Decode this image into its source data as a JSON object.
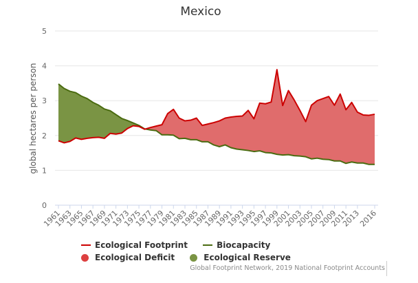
{
  "chart_data": {
    "type": "area",
    "title": "Mexico",
    "ylabel": "global hectares per person",
    "xlabel": "",
    "ylim": [
      0,
      5
    ],
    "yticks": [
      0,
      1,
      2,
      3,
      4,
      5
    ],
    "grid": true,
    "legend_placement": "bottom",
    "x": [
      1961,
      1962,
      1963,
      1964,
      1965,
      1966,
      1967,
      1968,
      1969,
      1970,
      1971,
      1972,
      1973,
      1974,
      1975,
      1976,
      1977,
      1978,
      1979,
      1980,
      1981,
      1982,
      1983,
      1984,
      1985,
      1986,
      1987,
      1988,
      1989,
      1990,
      1991,
      1992,
      1993,
      1994,
      1995,
      1996,
      1997,
      1998,
      1999,
      2000,
      2001,
      2002,
      2003,
      2004,
      2005,
      2006,
      2007,
      2008,
      2009,
      2010,
      2011,
      2012,
      2013,
      2014,
      2015,
      2016
    ],
    "xtick_labels": [
      "1961",
      "1963",
      "1965",
      "1967",
      "1969",
      "1971",
      "1973",
      "1975",
      "1977",
      "1979",
      "1981",
      "1983",
      "1985",
      "1987",
      "1989",
      "1991",
      "1993",
      "1995",
      "1997",
      "1999",
      "2001",
      "2003",
      "2005",
      "2007",
      "2009",
      "2011",
      "2013",
      "2016"
    ],
    "series": [
      {
        "name": "Ecological Footprint",
        "color": "#cc0000",
        "values": [
          1.85,
          1.79,
          1.83,
          1.93,
          1.89,
          1.92,
          1.94,
          1.95,
          1.92,
          2.06,
          2.04,
          2.07,
          2.2,
          2.28,
          2.26,
          2.18,
          2.23,
          2.27,
          2.31,
          2.63,
          2.75,
          2.5,
          2.42,
          2.44,
          2.5,
          2.29,
          2.33,
          2.37,
          2.42,
          2.5,
          2.53,
          2.55,
          2.56,
          2.72,
          2.48,
          2.93,
          2.91,
          2.96,
          3.89,
          2.86,
          3.29,
          3.02,
          2.72,
          2.4,
          2.87,
          3.0,
          3.06,
          3.12,
          2.87,
          3.19,
          2.74,
          2.95,
          2.67,
          2.59,
          2.58,
          2.61
        ]
      },
      {
        "name": "Biocapacity",
        "color": "#4a6b10",
        "values": [
          3.48,
          3.35,
          3.27,
          3.23,
          3.13,
          3.06,
          2.95,
          2.87,
          2.76,
          2.71,
          2.6,
          2.49,
          2.43,
          2.36,
          2.29,
          2.19,
          2.16,
          2.14,
          2.02,
          2.02,
          2.01,
          1.91,
          1.92,
          1.88,
          1.88,
          1.82,
          1.82,
          1.73,
          1.68,
          1.73,
          1.65,
          1.61,
          1.59,
          1.57,
          1.54,
          1.56,
          1.51,
          1.5,
          1.46,
          1.44,
          1.45,
          1.42,
          1.41,
          1.39,
          1.33,
          1.35,
          1.32,
          1.31,
          1.27,
          1.27,
          1.2,
          1.24,
          1.21,
          1.21,
          1.17,
          1.17
        ]
      }
    ],
    "areas": [
      {
        "name": "Ecological Deficit",
        "color": "#e06c6c"
      },
      {
        "name": "Ecological Reserve",
        "color": "#7a9444"
      }
    ]
  },
  "legend": {
    "footprint": "Ecological Footprint",
    "biocapacity": "Biocapacity",
    "deficit": "Ecological Deficit",
    "reserve": "Ecological Reserve"
  },
  "credit": "Global Footprint Network, 2019 National Footprint Accounts"
}
